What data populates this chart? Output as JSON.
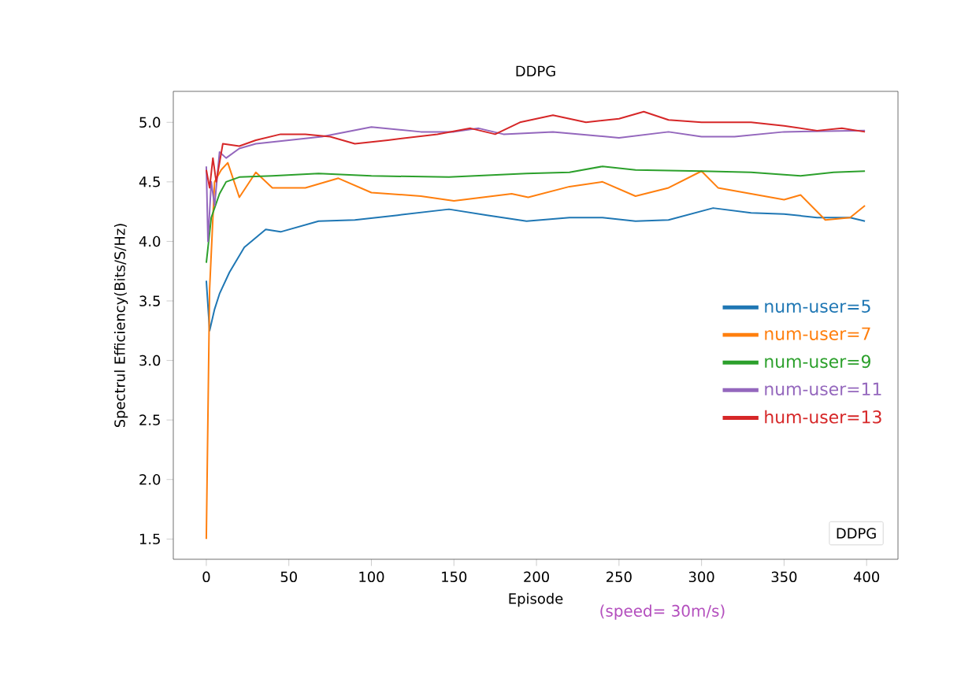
{
  "chart_data": {
    "type": "line",
    "title": "DDPG",
    "xlabel": "Episode",
    "ylabel": "Spectrul Efficiency(Bits/S/Hz)",
    "annotations": [
      "(speed= 30m/s)",
      "DDPG"
    ],
    "xlim": [
      -20,
      419
    ],
    "ylim": [
      1.33,
      5.26
    ],
    "xticks": [
      0,
      50,
      100,
      150,
      200,
      250,
      300,
      350,
      400
    ],
    "yticks": [
      1.5,
      {
        "value": 2,
        "label": "2.0"
      },
      2.5,
      {
        "value": 3,
        "label": "3.0"
      },
      3.5,
      {
        "value": 4,
        "label": "4.0"
      },
      4.5,
      {
        "value": 5,
        "label": "5.0"
      }
    ],
    "legend": "right",
    "series": [
      {
        "name": "num-user=5",
        "color": "#1f77b4",
        "x": [
          0,
          2,
          5,
          8,
          14,
          23,
          36,
          45,
          68,
          90,
          116,
          147,
          170,
          194,
          220,
          240,
          260,
          280,
          307,
          330,
          350,
          370,
          390,
          399
        ],
        "values": [
          3.67,
          3.25,
          3.43,
          3.56,
          3.74,
          3.95,
          4.1,
          4.08,
          4.17,
          4.18,
          4.22,
          4.27,
          4.22,
          4.17,
          4.2,
          4.2,
          4.17,
          4.18,
          4.28,
          4.24,
          4.23,
          4.2,
          4.2,
          4.17
        ]
      },
      {
        "name": "num-user=7",
        "color": "#ff7f0e",
        "x": [
          0,
          2,
          5,
          9,
          13,
          20,
          30,
          40,
          60,
          80,
          100,
          130,
          150,
          185,
          195,
          220,
          240,
          260,
          280,
          300,
          310,
          330,
          350,
          360,
          375,
          390,
          399
        ],
        "values": [
          1.5,
          3.6,
          4.5,
          4.6,
          4.66,
          4.37,
          4.58,
          4.45,
          4.45,
          4.53,
          4.41,
          4.38,
          4.34,
          4.4,
          4.37,
          4.46,
          4.5,
          4.38,
          4.45,
          4.59,
          4.45,
          4.4,
          4.35,
          4.39,
          4.18,
          4.2,
          4.3
        ]
      },
      {
        "name": "num-user=9",
        "color": "#2ca02c",
        "x": [
          0,
          3,
          8,
          12,
          20,
          40,
          68,
          100,
          147,
          194,
          220,
          240,
          260,
          300,
          330,
          360,
          380,
          399
        ],
        "values": [
          3.82,
          4.2,
          4.4,
          4.5,
          4.54,
          4.55,
          4.57,
          4.55,
          4.54,
          4.57,
          4.58,
          4.63,
          4.6,
          4.59,
          4.58,
          4.55,
          4.58,
          4.59
        ]
      },
      {
        "name": "num-user=11",
        "color": "#9467bd",
        "x": [
          0,
          1,
          3,
          5,
          8,
          12,
          20,
          30,
          50,
          70,
          100,
          130,
          150,
          165,
          180,
          210,
          250,
          280,
          300,
          320,
          350,
          399
        ],
        "values": [
          4.63,
          4.0,
          4.5,
          4.3,
          4.75,
          4.7,
          4.78,
          4.82,
          4.85,
          4.88,
          4.96,
          4.92,
          4.92,
          4.95,
          4.9,
          4.92,
          4.87,
          4.92,
          4.88,
          4.88,
          4.92,
          4.93
        ]
      },
      {
        "name": "hum-user=13",
        "color": "#d62728",
        "x": [
          0,
          2,
          4,
          6,
          10,
          20,
          30,
          45,
          60,
          75,
          90,
          110,
          140,
          160,
          175,
          190,
          210,
          230,
          250,
          265,
          280,
          300,
          330,
          350,
          370,
          385,
          399
        ],
        "values": [
          4.6,
          4.45,
          4.7,
          4.5,
          4.82,
          4.8,
          4.85,
          4.9,
          4.9,
          4.88,
          4.82,
          4.85,
          4.9,
          4.95,
          4.9,
          5.0,
          5.06,
          5.0,
          5.03,
          5.09,
          5.02,
          5.0,
          5.0,
          4.97,
          4.93,
          4.95,
          4.92
        ]
      }
    ]
  }
}
